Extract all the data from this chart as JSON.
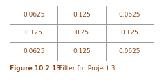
{
  "table_data": [
    [
      "0.0625",
      "0.125",
      "0.0625"
    ],
    [
      "0.125",
      "0.25",
      "0.125"
    ],
    [
      "0.0625",
      "0.125",
      "0.0625"
    ]
  ],
  "caption_bold": "Figure 10.2.13",
  "caption_normal": "  Filter for Project 3",
  "text_color": "#8B4513",
  "caption_color": "#8B4513",
  "table_edge_color": "#999999",
  "background_color": "#ffffff",
  "font_size": 6.5,
  "caption_font_size": 6.5
}
